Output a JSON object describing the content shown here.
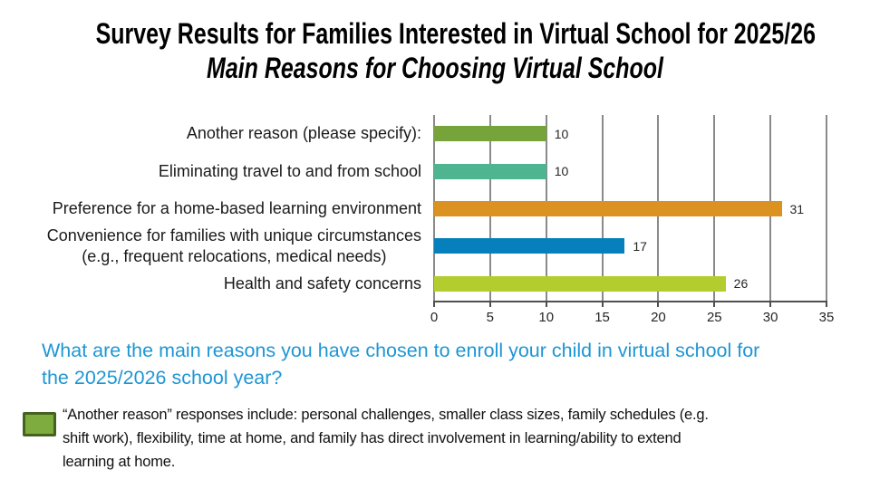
{
  "slide": {
    "background": "#FFFFFF",
    "title": "Survey Results for Families Interested in Virtual School for 2025/26",
    "subtitle": "Main Reasons for Choosing Virtual School"
  },
  "chart_data": {
    "type": "bar",
    "orientation": "horizontal",
    "title": "Main Reasons for Choosing Virtual School",
    "categories": [
      {
        "label": "Another reason (please specify):",
        "lines": [
          "Another reason (please specify):"
        ],
        "value": 10,
        "color": "#77A33B"
      },
      {
        "label": "Eliminating travel to and from school",
        "lines": [
          "Eliminating travel to and from school"
        ],
        "value": 10,
        "color": "#4FB591"
      },
      {
        "label": "Preference for a home-based learning environment",
        "lines": [
          "Preference for a home-based learning environment"
        ],
        "value": 31,
        "color": "#DB9220"
      },
      {
        "label": "Convenience for families with unique circumstances (e.g., frequent relocations, medical needs)",
        "lines": [
          "Convenience for families with unique circumstances",
          "(e.g., frequent relocations, medical needs)"
        ],
        "value": 17,
        "color": "#0580BC"
      },
      {
        "label": "Health and safety concerns",
        "lines": [
          "Health and safety concerns"
        ],
        "value": 26,
        "color": "#B3CD2E"
      }
    ],
    "x_ticks": [
      0,
      5,
      10,
      15,
      20,
      25,
      30,
      35
    ],
    "xlim": [
      0,
      35
    ],
    "grid": "vertical",
    "grid_color": "#8A8A8A",
    "axis_color": "#4F4F4F",
    "value_labels_shown": true
  },
  "question": {
    "color": "#1E96D3",
    "lines": [
      "What are the main reasons you have chosen to enroll your child in virtual school for",
      "the 2025/2026 school year?"
    ]
  },
  "note": {
    "swatch_fill": "#7FAC3E",
    "swatch_border": "#466220",
    "lines": [
      "“Another reason” responses include: personal challenges, smaller class sizes, family schedules (e.g.",
      "shift work), flexibility, time at home, and family has direct involvement in learning/ability to extend",
      "learning at home."
    ]
  }
}
